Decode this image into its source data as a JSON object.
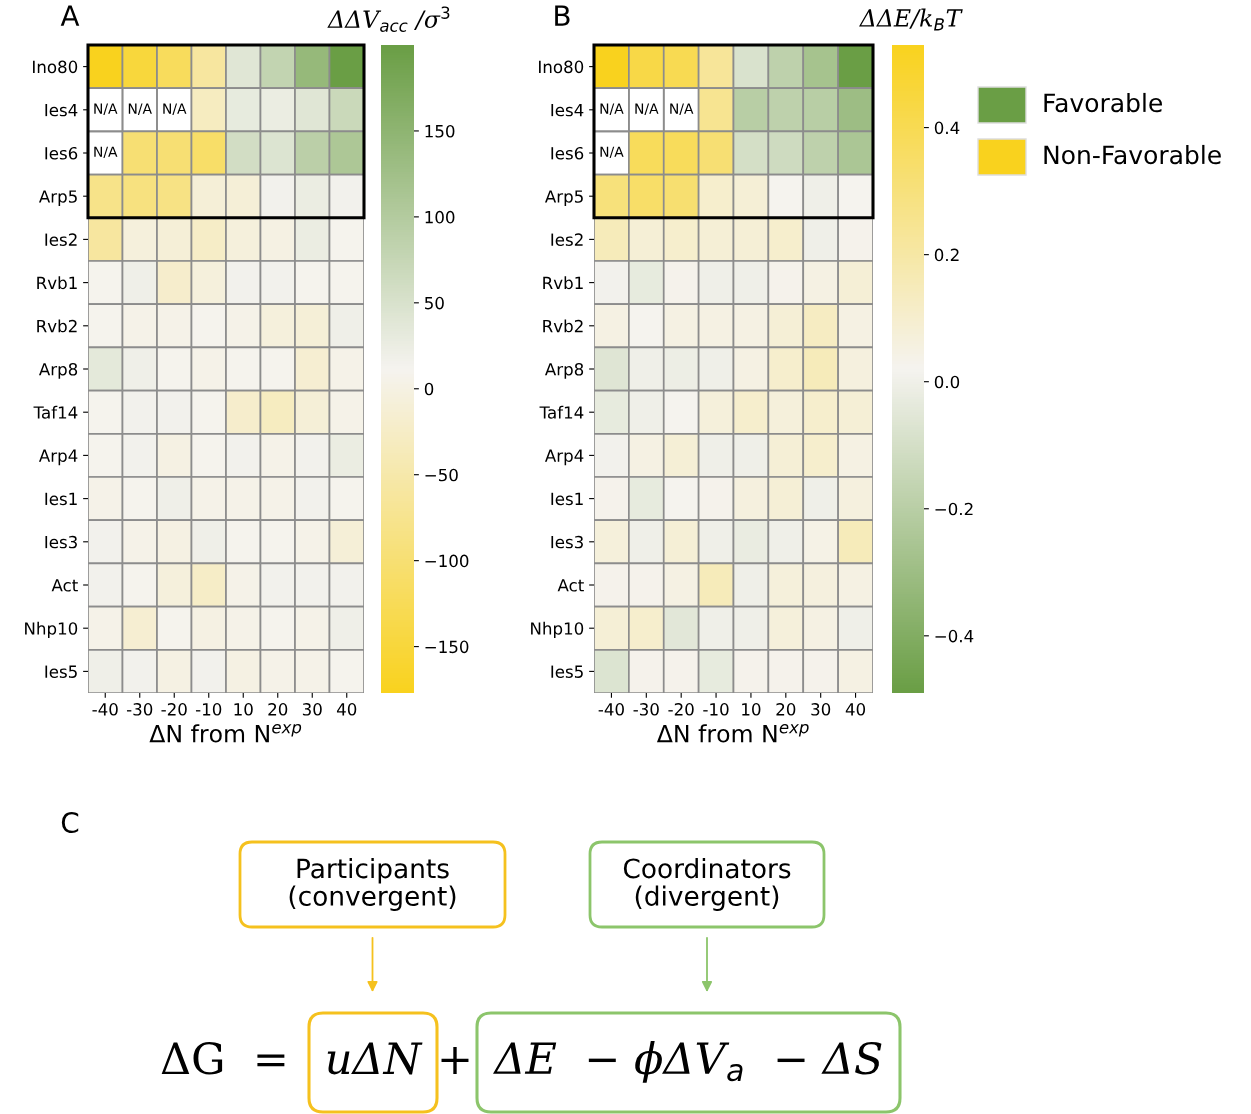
{
  "chart_data": [
    {
      "type": "heatmap",
      "title": "A",
      "xlabel": "ΔN from N$^{exp}$",
      "clabel": "ΔΔV$_{acc}$ /σ$^{3}$",
      "categories": [
        "-40",
        "-30",
        "-20",
        "-10",
        "10",
        "20",
        "30",
        "40"
      ],
      "y_categories": [
        "Ino80",
        "Ies4",
        "Ies6",
        "Arp5",
        "Ies2",
        "Rvb1",
        "Rvb2",
        "Arp8",
        "Taf14",
        "Arp4",
        "Ies1",
        "Ies3",
        "Act",
        "Nhp10",
        "Ies5"
      ],
      "cells": [
        [
          -177,
          -150,
          -120,
          -60,
          40,
          80,
          140,
          200
        ],
        [
          null,
          null,
          null,
          -30,
          30,
          25,
          40,
          70
        ],
        [
          null,
          -100,
          -100,
          -110,
          60,
          45,
          90,
          110
        ],
        [
          -80,
          -90,
          -85,
          -10,
          -10,
          15,
          25,
          15
        ],
        [
          -60,
          -5,
          -10,
          -25,
          -5,
          0,
          25,
          10
        ],
        [
          10,
          20,
          -20,
          -5,
          15,
          15,
          10,
          10
        ],
        [
          10,
          5,
          5,
          10,
          5,
          -5,
          -10,
          20
        ],
        [
          35,
          20,
          10,
          5,
          10,
          10,
          -15,
          5
        ],
        [
          10,
          15,
          15,
          10,
          -20,
          -30,
          -10,
          5
        ],
        [
          10,
          15,
          0,
          10,
          15,
          5,
          15,
          25
        ],
        [
          5,
          10,
          20,
          5,
          5,
          5,
          15,
          10
        ],
        [
          15,
          5,
          0,
          20,
          10,
          10,
          5,
          -10
        ],
        [
          15,
          10,
          -5,
          -25,
          5,
          15,
          15,
          15
        ],
        [
          5,
          -15,
          10,
          0,
          5,
          10,
          5,
          20
        ],
        [
          20,
          15,
          0,
          15,
          0,
          5,
          5,
          10
        ]
      ],
      "cell_labels": [
        [
          null,
          null,
          null,
          null,
          null,
          null,
          null,
          null
        ],
        [
          "N/A",
          "N/A",
          "N/A",
          null,
          null,
          null,
          null,
          null
        ],
        [
          "N/A",
          null,
          null,
          null,
          null,
          null,
          null,
          null
        ],
        [
          null,
          null,
          null,
          null,
          null,
          null,
          null,
          null
        ],
        [
          null,
          null,
          null,
          null,
          null,
          null,
          null,
          null
        ],
        [
          null,
          null,
          null,
          null,
          null,
          null,
          null,
          null
        ],
        [
          null,
          null,
          null,
          null,
          null,
          null,
          null,
          null
        ],
        [
          null,
          null,
          null,
          null,
          null,
          null,
          null,
          null
        ],
        [
          null,
          null,
          null,
          null,
          null,
          null,
          null,
          null
        ],
        [
          null,
          null,
          null,
          null,
          null,
          null,
          null,
          null
        ],
        [
          null,
          null,
          null,
          null,
          null,
          null,
          null,
          null
        ],
        [
          null,
          null,
          null,
          null,
          null,
          null,
          null,
          null
        ],
        [
          null,
          null,
          null,
          null,
          null,
          null,
          null,
          null
        ],
        [
          null,
          null,
          null,
          null,
          null,
          null,
          null,
          null
        ],
        [
          null,
          null,
          null,
          null,
          null,
          null,
          null,
          null
        ]
      ],
      "colors": [
        "#f9d21e",
        "#f5f3ef",
        "#6a9e45"
      ],
      "clim": [
        -177,
        200
      ],
      "cticks": [
        {
          "value": -150,
          "label": "−150"
        },
        {
          "value": -100,
          "label": "−100"
        },
        {
          "value": -50,
          "label": "−50"
        },
        0,
        50,
        100,
        150
      ]
    },
    {
      "type": "heatmap",
      "title": "B",
      "xlabel": "ΔN from N$^{exp}$",
      "clabel": "ΔΔE/k$_{B}$T",
      "categories": [
        "-40",
        "-30",
        "-20",
        "-10",
        "10",
        "20",
        "30",
        "40"
      ],
      "y_categories": [
        "Ino80",
        "Ies4",
        "Ies6",
        "Arp5",
        "Ies2",
        "Rvb1",
        "Rvb2",
        "Arp8",
        "Taf14",
        "Arp4",
        "Ies1",
        "Ies3",
        "Act",
        "Nhp10",
        "Ies5"
      ],
      "cells": [
        [
          0.53,
          0.43,
          0.4,
          0.23,
          -0.08,
          -0.18,
          -0.27,
          -0.49
        ],
        [
          null,
          null,
          null,
          0.25,
          -0.2,
          -0.18,
          -0.2,
          -0.3
        ],
        [
          null,
          0.38,
          0.38,
          0.32,
          -0.1,
          -0.12,
          -0.18,
          -0.25
        ],
        [
          0.3,
          0.35,
          0.33,
          0.1,
          0.08,
          0.02,
          0.0,
          0.02
        ],
        [
          0.15,
          0.08,
          0.1,
          0.08,
          0.08,
          0.1,
          0.0,
          0.03
        ],
        [
          0.01,
          -0.03,
          0.03,
          0.0,
          0.0,
          0.03,
          0.05,
          0.08
        ],
        [
          0.05,
          0.02,
          0.05,
          0.05,
          0.05,
          0.08,
          0.13,
          0.05
        ],
        [
          -0.06,
          0.0,
          -0.01,
          0.0,
          0.05,
          0.1,
          0.15,
          0.06
        ],
        [
          -0.03,
          0.0,
          0.02,
          0.07,
          0.1,
          0.07,
          0.1,
          0.08
        ],
        [
          0.01,
          0.05,
          0.08,
          0.0,
          0.0,
          0.08,
          0.1,
          0.05
        ],
        [
          0.03,
          -0.03,
          0.02,
          0.03,
          0.06,
          0.08,
          0.0,
          0.06
        ],
        [
          0.07,
          0.0,
          0.08,
          0.0,
          -0.02,
          0.0,
          0.04,
          0.15
        ],
        [
          0.03,
          0.03,
          0.05,
          0.15,
          0.0,
          0.07,
          0.06,
          0.05
        ],
        [
          0.08,
          0.1,
          -0.05,
          0.0,
          0.0,
          0.07,
          0.05,
          0.0
        ],
        [
          -0.07,
          0.03,
          0.03,
          -0.03,
          0.03,
          0.03,
          0.03,
          0.05
        ]
      ],
      "cell_labels": [
        [
          null,
          null,
          null,
          null,
          null,
          null,
          null,
          null
        ],
        [
          "N/A",
          "N/A",
          "N/A",
          null,
          null,
          null,
          null,
          null
        ],
        [
          "N/A",
          null,
          null,
          null,
          null,
          null,
          null,
          null
        ],
        [
          null,
          null,
          null,
          null,
          null,
          null,
          null,
          null
        ],
        [
          null,
          null,
          null,
          null,
          null,
          null,
          null,
          null
        ],
        [
          null,
          null,
          null,
          null,
          null,
          null,
          null,
          null
        ],
        [
          null,
          null,
          null,
          null,
          null,
          null,
          null,
          null
        ],
        [
          null,
          null,
          null,
          null,
          null,
          null,
          null,
          null
        ],
        [
          null,
          null,
          null,
          null,
          null,
          null,
          null,
          null
        ],
        [
          null,
          null,
          null,
          null,
          null,
          null,
          null,
          null
        ],
        [
          null,
          null,
          null,
          null,
          null,
          null,
          null,
          null
        ],
        [
          null,
          null,
          null,
          null,
          null,
          null,
          null,
          null
        ],
        [
          null,
          null,
          null,
          null,
          null,
          null,
          null,
          null
        ],
        [
          null,
          null,
          null,
          null,
          null,
          null,
          null,
          null
        ],
        [
          null,
          null,
          null,
          null,
          null,
          null,
          null,
          null
        ]
      ],
      "colors": [
        "#6a9e45",
        "#f5f3ef",
        "#f9d21e"
      ],
      "clim": [
        -0.49,
        0.53
      ],
      "cticks": [
        {
          "value": -0.4,
          "label": "−0.4"
        },
        {
          "value": -0.2,
          "label": "−0.2"
        },
        {
          "value": 0,
          "label": "0.0"
        },
        0.2,
        0.4
      ]
    },
    {
      "type": "other",
      "annotations": [
        "Favorable",
        "Non-Favorable"
      ],
      "colors": [
        "#6a9e45",
        "#f9d21e"
      ]
    },
    {
      "type": "other",
      "title": "C",
      "annotations": [
        "Participants\n(convergent)",
        "Coordinators\n(divergent)",
        "ΔG  =",
        "uΔN",
        "+",
        "ΔE  − ϕΔV$_{a}$  − ΔS"
      ],
      "colors": [
        "#f5c11e",
        "#8cc56b"
      ]
    }
  ]
}
